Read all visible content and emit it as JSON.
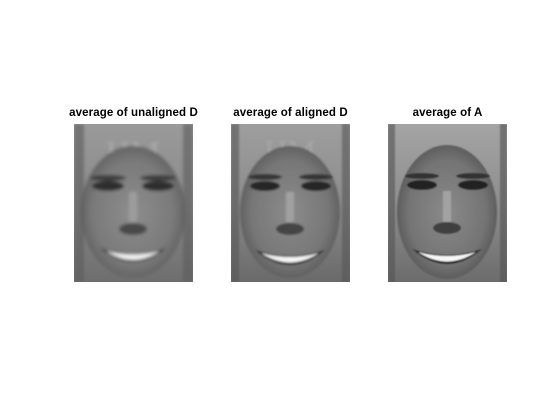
{
  "figure": {
    "panels": [
      {
        "title": "average of unaligned D",
        "blur": "strong"
      },
      {
        "title": "average of aligned D",
        "blur": "medium"
      },
      {
        "title": "average of A",
        "blur": "light"
      }
    ],
    "colors": {
      "background": "#ffffff",
      "title_text": "#000000"
    }
  }
}
